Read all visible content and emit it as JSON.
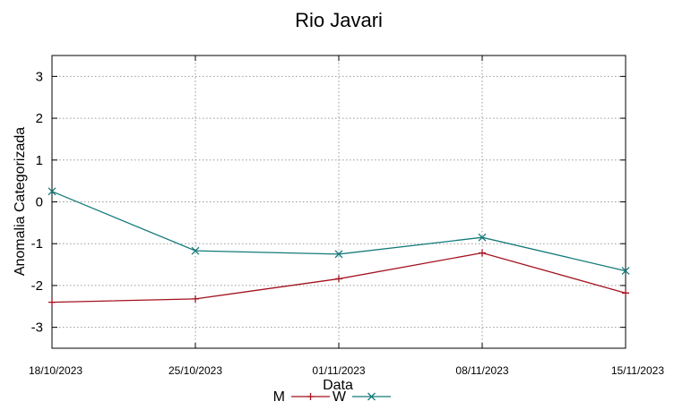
{
  "chart_data": {
    "type": "line",
    "title": "Rio Javari",
    "xlabel": "Data",
    "ylabel": "Anomalia Categorizada",
    "categories": [
      "18/10/2023",
      "25/10/2023",
      "01/11/2023",
      "08/11/2023",
      "15/11/2023"
    ],
    "ylim": [
      -3.5,
      3.5
    ],
    "yticks": [
      -3,
      -2,
      -1,
      0,
      1,
      2,
      3
    ],
    "grid": true,
    "legend_position": "bottom",
    "series": [
      {
        "name": "M",
        "color": "#a3121d",
        "marker": "plus",
        "values": [
          -2.4,
          -2.32,
          -1.84,
          -1.22,
          -2.18
        ]
      },
      {
        "name": "W",
        "color": "#157a7a",
        "marker": "cross",
        "values": [
          0.25,
          -1.17,
          -1.25,
          -0.85,
          -1.65
        ]
      }
    ]
  }
}
